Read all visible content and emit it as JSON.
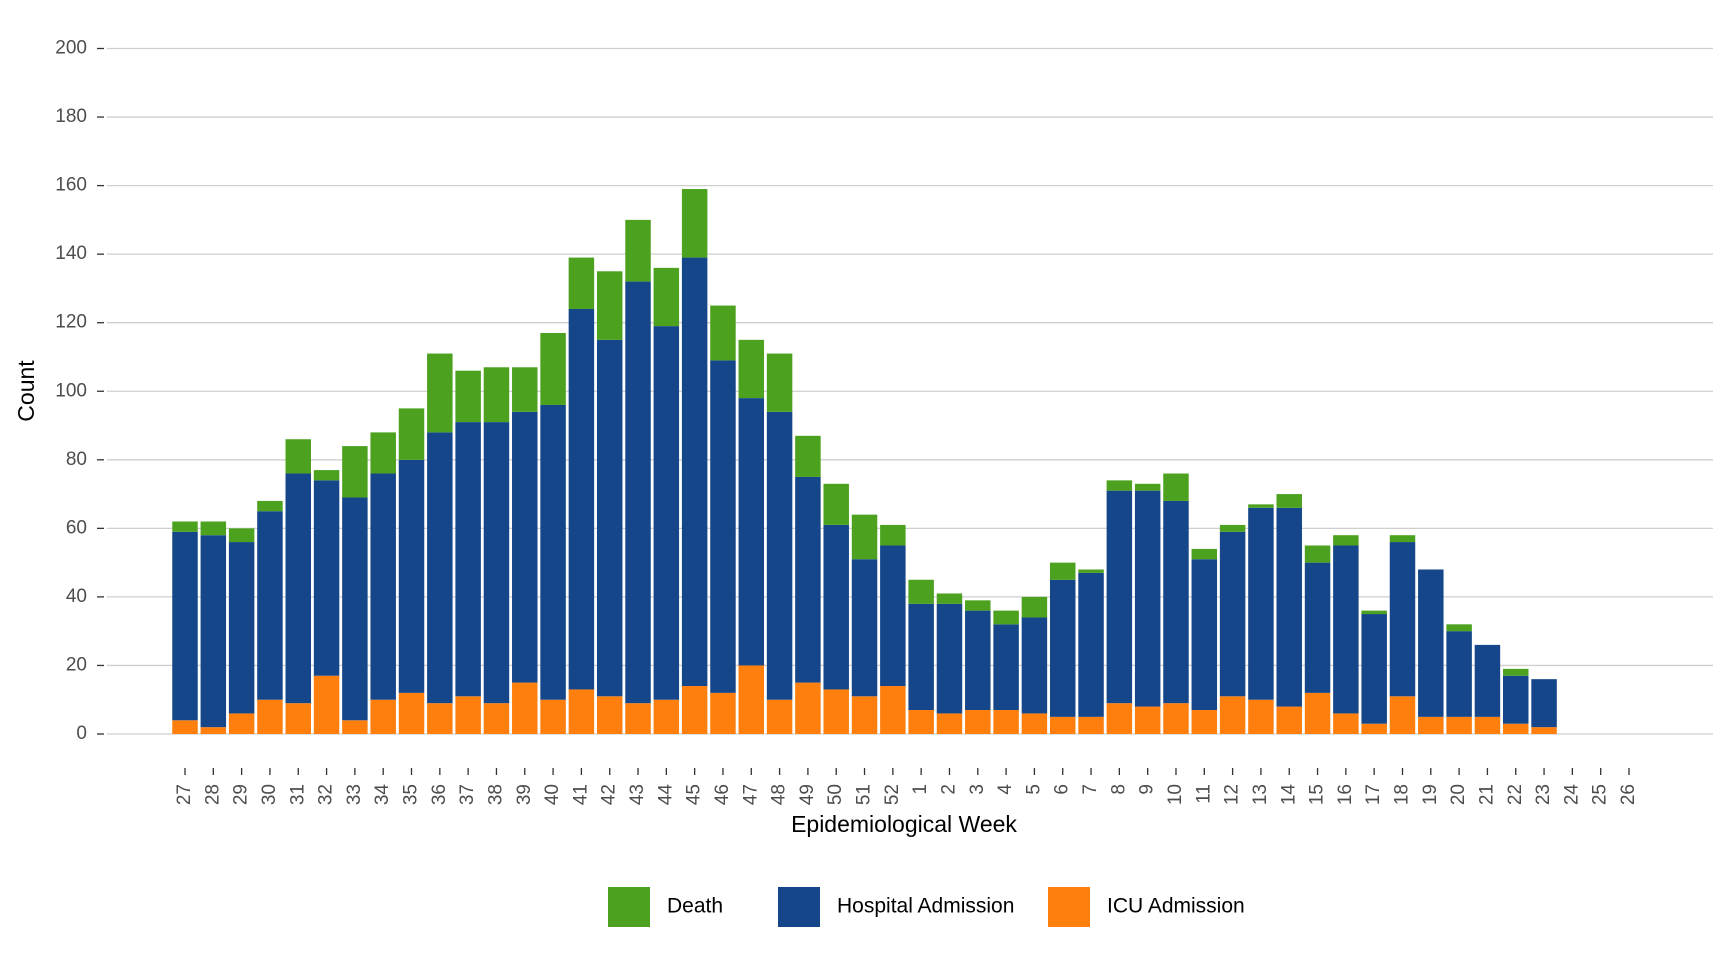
{
  "chart_data": {
    "type": "stacked-bar",
    "x_label": "Epidemiological Week",
    "y_label": "Count",
    "categories": [
      "27",
      "28",
      "29",
      "30",
      "31",
      "32",
      "33",
      "34",
      "35",
      "36",
      "37",
      "38",
      "39",
      "40",
      "41",
      "42",
      "43",
      "44",
      "45",
      "46",
      "47",
      "48",
      "49",
      "50",
      "51",
      "52",
      "1",
      "2",
      "3",
      "4",
      "5",
      "6",
      "7",
      "8",
      "9",
      "10",
      "11",
      "12",
      "13",
      "14",
      "15",
      "16",
      "17",
      "18",
      "19",
      "20",
      "21",
      "22",
      "23",
      "24",
      "25",
      "26"
    ],
    "series": [
      {
        "name": "Death",
        "color": "#4ca21f",
        "values": [
          3,
          4,
          4,
          3,
          10,
          3,
          15,
          12,
          15,
          23,
          15,
          16,
          13,
          21,
          15,
          20,
          18,
          17,
          20,
          16,
          17,
          17,
          12,
          12,
          13,
          6,
          7,
          3,
          3,
          4,
          6,
          5,
          1,
          3,
          2,
          8,
          3,
          2,
          1,
          4,
          5,
          3,
          1,
          2,
          0,
          2,
          0,
          2,
          0,
          null,
          null,
          null
        ]
      },
      {
        "name": "Hospital Admission",
        "color": "#15468a",
        "values": [
          55,
          56,
          50,
          55,
          67,
          57,
          65,
          66,
          68,
          79,
          80,
          82,
          79,
          86,
          111,
          104,
          123,
          109,
          125,
          97,
          78,
          84,
          60,
          48,
          40,
          41,
          31,
          32,
          29,
          25,
          28,
          40,
          42,
          62,
          63,
          59,
          44,
          48,
          56,
          58,
          38,
          49,
          32,
          45,
          43,
          25,
          21,
          14,
          14,
          null,
          null,
          null
        ]
      },
      {
        "name": "ICU Admission",
        "color": "#ff7f0e",
        "values": [
          4,
          2,
          6,
          10,
          9,
          17,
          4,
          10,
          12,
          9,
          11,
          9,
          15,
          10,
          13,
          11,
          9,
          10,
          14,
          12,
          20,
          10,
          15,
          13,
          11,
          14,
          7,
          6,
          7,
          7,
          6,
          5,
          5,
          9,
          8,
          9,
          7,
          11,
          10,
          8,
          12,
          6,
          3,
          11,
          5,
          5,
          5,
          3,
          2,
          null,
          null,
          null
        ]
      }
    ],
    "ylim": [
      0,
      200
    ],
    "yticks": [
      0,
      20,
      40,
      60,
      80,
      100,
      120,
      140,
      160,
      180,
      200
    ],
    "grid": true,
    "legend": "bottom"
  }
}
